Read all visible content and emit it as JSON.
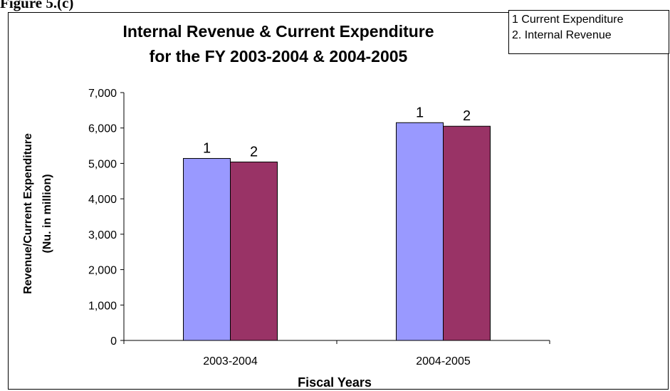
{
  "figure_label": "Figure 5.(c)",
  "legend": {
    "items": [
      "1 Current Expenditure",
      "2. Internal Revenue"
    ]
  },
  "colors": {
    "series_1": "#9999ff",
    "series_2": "#993366"
  },
  "chart_data": {
    "type": "bar",
    "title_lines": [
      "Internal Revenue & Current Expenditure",
      "for the FY 2003-2004 & 2004-2005"
    ],
    "xlabel": "Fiscal Years",
    "ylabel_lines": [
      "Revenue/Current Expenditure",
      "(Nu. in million)"
    ],
    "categories": [
      "2003-2004",
      "2004-2005"
    ],
    "ylim": [
      0,
      7000
    ],
    "yticks": [
      0,
      1000,
      2000,
      3000,
      4000,
      5000,
      6000,
      7000
    ],
    "ytick_labels": [
      "0",
      "1,000",
      "2,000",
      "3,000",
      "4,000",
      "5,000",
      "6,000",
      "7,000"
    ],
    "series": [
      {
        "name": "1 Current Expenditure",
        "label": "1",
        "values": [
          5140,
          6150
        ]
      },
      {
        "name": "2. Internal Revenue",
        "label": "2",
        "values": [
          5040,
          6050
        ]
      }
    ],
    "grid": false,
    "legend_position": "top-right"
  }
}
